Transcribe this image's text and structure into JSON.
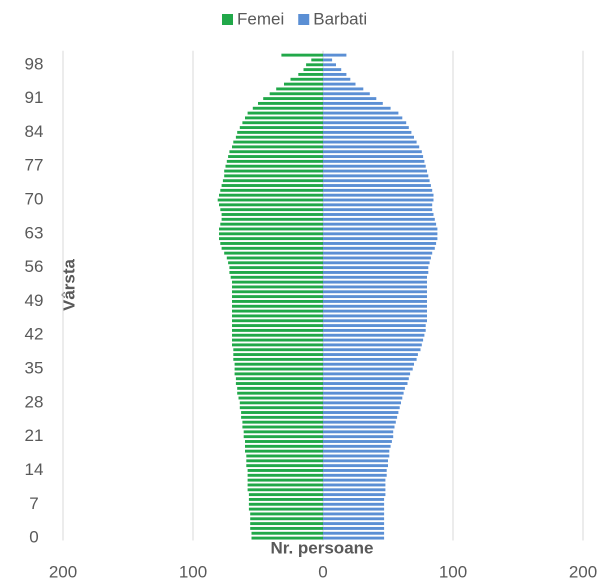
{
  "chart_data": {
    "type": "pyramid",
    "x_label": "Nr. persoane",
    "y_label": "Vârsta",
    "categories": [
      "0",
      null,
      null,
      null,
      null,
      null,
      null,
      "7",
      null,
      null,
      null,
      null,
      null,
      null,
      "14",
      null,
      null,
      null,
      null,
      null,
      null,
      "21",
      null,
      null,
      null,
      null,
      null,
      null,
      "28",
      null,
      null,
      null,
      null,
      null,
      null,
      "35",
      null,
      null,
      null,
      null,
      null,
      null,
      "42",
      null,
      null,
      null,
      null,
      null,
      null,
      "49",
      null,
      null,
      null,
      null,
      null,
      null,
      "56",
      null,
      null,
      null,
      null,
      null,
      null,
      "63",
      null,
      null,
      null,
      null,
      null,
      null,
      "70",
      null,
      null,
      null,
      null,
      null,
      null,
      "77",
      null,
      null,
      null,
      null,
      null,
      null,
      "84",
      null,
      null,
      null,
      null,
      null,
      null,
      "91",
      null,
      null,
      null,
      null,
      null,
      null,
      "98",
      null,
      null
    ],
    "series": [
      {
        "name": "Femei",
        "color": "#21a849",
        "values": [
          -55,
          -55,
          -56,
          -56,
          -56,
          -56,
          -57,
          -57,
          -57,
          -57,
          -58,
          -58,
          -58,
          -58,
          -58,
          -59,
          -59,
          -59,
          -60,
          -60,
          -60,
          -61,
          -61,
          -62,
          -62,
          -63,
          -63,
          -64,
          -64,
          -65,
          -66,
          -66,
          -67,
          -67,
          -68,
          -68,
          -68,
          -69,
          -69,
          -69,
          -70,
          -70,
          -70,
          -70,
          -70,
          -70,
          -70,
          -70,
          -70,
          -70,
          -70,
          -70,
          -70,
          -70,
          -71,
          -72,
          -72,
          -73,
          -74,
          -76,
          -78,
          -79,
          -80,
          -80,
          -80,
          -79,
          -78,
          -78,
          -79,
          -80,
          -81,
          -80,
          -79,
          -78,
          -77,
          -76,
          -76,
          -75,
          -74,
          -73,
          -72,
          -70,
          -69,
          -67,
          -66,
          -64,
          -62,
          -60,
          -58,
          -54,
          -50,
          -46,
          -41,
          -36,
          -30,
          -25,
          -19,
          -15,
          -13,
          -9,
          -32
        ]
      },
      {
        "name": "Barbati",
        "color": "#5b8fd4",
        "values": [
          47,
          47,
          47,
          47,
          47,
          47,
          47,
          47,
          47,
          48,
          48,
          48,
          48,
          49,
          49,
          50,
          50,
          51,
          51,
          52,
          53,
          54,
          54,
          55,
          56,
          57,
          58,
          59,
          60,
          61,
          62,
          63,
          65,
          66,
          67,
          69,
          70,
          72,
          73,
          75,
          76,
          77,
          78,
          79,
          79,
          80,
          80,
          80,
          80,
          80,
          80,
          80,
          80,
          80,
          80,
          81,
          81,
          82,
          83,
          84,
          86,
          87,
          88,
          88,
          88,
          87,
          86,
          85,
          84,
          84,
          85,
          85,
          84,
          83,
          82,
          81,
          80,
          79,
          78,
          77,
          76,
          74,
          72,
          70,
          68,
          66,
          64,
          61,
          58,
          52,
          46,
          41,
          36,
          31,
          25,
          21,
          18,
          14,
          10,
          7,
          18
        ]
      }
    ],
    "xlim": [
      -200,
      200
    ],
    "xticks": [
      {
        "value": -200,
        "label": "200"
      },
      {
        "value": -100,
        "label": "100"
      },
      0,
      100,
      200
    ],
    "grid": true,
    "legend": "top"
  }
}
